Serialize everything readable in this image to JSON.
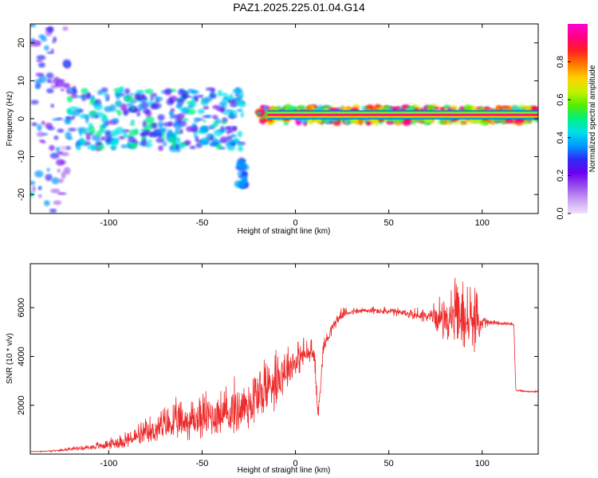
{
  "title": "PAZ1.2025.225.01.04.G14",
  "colors": {
    "snr_line": "#ee2a2a",
    "colormap": [
      "#f0e0ff",
      "#c8a0f0",
      "#9a50ee",
      "#6a00f0",
      "#2f2af5",
      "#0099ff",
      "#00e0e8",
      "#00f080",
      "#55ee00",
      "#c8f000",
      "#ffd000",
      "#ff7a00",
      "#ff2020",
      "#ff0080",
      "#ff00d0"
    ]
  },
  "chart_data": [
    {
      "type": "heatmap",
      "xlabel": "Height of straight line (km)",
      "ylabel": "Frequency (Hz)",
      "xlim": [
        -142,
        130
      ],
      "ylim": [
        -25,
        25
      ],
      "xticks": [
        "-100",
        "-50",
        "0",
        "50",
        "100"
      ],
      "yticks": [
        "-20",
        "-10",
        "0",
        "10",
        "20"
      ],
      "colorbar": {
        "label": "Normalized spectral amplitude",
        "ticks": [
          "0.0",
          "0.2",
          "0.4",
          "0.6",
          "0.8"
        ],
        "range": [
          0,
          1
        ]
      },
      "ridge": {
        "frequency_hz": 1,
        "x_range": [
          -15,
          130
        ],
        "amplitude": 0.95
      },
      "features": [
        {
          "x_range": [
            -142,
            -122
          ],
          "freq_range": [
            -25,
            25
          ],
          "amplitude_range": [
            0.1,
            0.4
          ]
        },
        {
          "x_range": [
            -122,
            -28
          ],
          "freq_range": [
            -8,
            8
          ],
          "amplitude_range": [
            0.2,
            0.5
          ]
        },
        {
          "x_range": [
            -31,
            -27
          ],
          "freq_range": [
            -18,
            -11
          ],
          "amplitude_range": [
            0.3,
            0.4
          ]
        },
        {
          "x_range": [
            -20,
            130
          ],
          "freq_range": [
            -1,
            3
          ],
          "amplitude_range": [
            0.4,
            1.0
          ]
        }
      ]
    },
    {
      "type": "line",
      "xlabel": "Height of straight line (km)",
      "ylabel": "SNR (10 * v/v)",
      "xlim": [
        -142,
        130
      ],
      "ylim": [
        0,
        7800
      ],
      "xticks": [
        "-100",
        "-50",
        "0",
        "50",
        "100"
      ],
      "yticks": [
        "2000",
        "4000",
        "6000"
      ],
      "series": [
        {
          "x": [
            -142,
            -130,
            -120,
            -110,
            -100,
            -90,
            -80,
            -70,
            -60,
            -50,
            -40,
            -30,
            -25,
            -20,
            -15,
            -10,
            -5,
            0,
            5,
            10,
            12,
            15,
            20,
            25,
            30,
            40,
            50,
            60,
            70,
            75,
            80,
            85,
            90,
            95,
            100,
            105,
            110,
            115,
            117,
            118,
            120,
            125,
            130
          ],
          "y": [
            100,
            120,
            200,
            250,
            350,
            500,
            700,
            1000,
            1150,
            1300,
            1400,
            1600,
            1800,
            2100,
            2500,
            2900,
            3300,
            3650,
            3950,
            4050,
            1500,
            4300,
            5200,
            5700,
            5800,
            5850,
            5800,
            5700,
            5600,
            5500,
            5400,
            5300,
            5200,
            5100,
            5300,
            5350,
            5350,
            5300,
            5300,
            2600,
            2600,
            2550,
            2550
          ],
          "noise": [
            20,
            30,
            60,
            120,
            200,
            350,
            500,
            700,
            800,
            900,
            900,
            1100,
            1200,
            1300,
            1200,
            1300,
            900,
            700,
            600,
            500,
            400,
            350,
            250,
            200,
            150,
            150,
            150,
            200,
            300,
            500,
            900,
            1200,
            1400,
            1300,
            400,
            100,
            80,
            60,
            60,
            40,
            40,
            40,
            40
          ]
        }
      ]
    }
  ]
}
